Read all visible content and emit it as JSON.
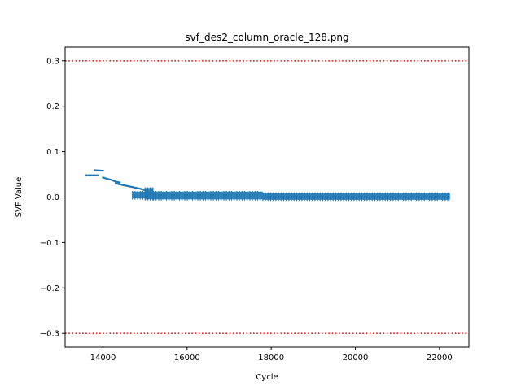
{
  "chart_data": {
    "type": "scatter",
    "title": "svf_des2_column_oracle_128.png",
    "xlabel": "Cycle",
    "ylabel": "SVF Value",
    "xlim": [
      13100,
      22700
    ],
    "ylim": [
      -0.33,
      0.33
    ],
    "xticks": [
      14000,
      16000,
      18000,
      20000,
      22000
    ],
    "xtick_labels": [
      "14000",
      "16000",
      "18000",
      "20000",
      "22000"
    ],
    "yticks": [
      -0.3,
      -0.2,
      -0.1,
      0.0,
      0.1,
      0.2,
      0.3
    ],
    "ytick_labels": [
      "−0.3",
      "−0.2",
      "−0.1",
      "0.0",
      "0.1",
      "0.2",
      "0.3"
    ],
    "grid": false,
    "reference_lines": [
      {
        "y": 0.3,
        "color": "#e8221c",
        "style": "dotted"
      },
      {
        "y": -0.3,
        "color": "#e8221c",
        "style": "dotted"
      }
    ],
    "series": [
      {
        "color": "#1f77b4",
        "segments": [
          {
            "x": [
              13600,
              13880
            ],
            "y": [
              0.048,
              0.048
            ]
          },
          {
            "x": [
              13800,
              14000
            ],
            "y": [
              0.059,
              0.058
            ]
          },
          {
            "x": [
              14000,
              14100,
              14200,
              14300,
              14400
            ],
            "y": [
              0.043,
              0.04,
              0.038,
              0.034,
              0.032
            ]
          },
          {
            "x": [
              14300,
              14500,
              14700,
              14900,
              15000
            ],
            "y": [
              0.03,
              0.026,
              0.022,
              0.018,
              0.015
            ]
          }
        ],
        "bands": [
          {
            "x": [
              14700,
              15100
            ],
            "y": [
              -0.003,
              0.012
            ]
          },
          {
            "x": [
              15000,
              15200
            ],
            "y": [
              -0.005,
              0.02
            ]
          },
          {
            "x": [
              15200,
              17800
            ],
            "y": [
              -0.005,
              0.012
            ]
          },
          {
            "x": [
              17800,
              22250
            ],
            "y": [
              -0.006,
              0.009
            ]
          }
        ]
      }
    ]
  }
}
